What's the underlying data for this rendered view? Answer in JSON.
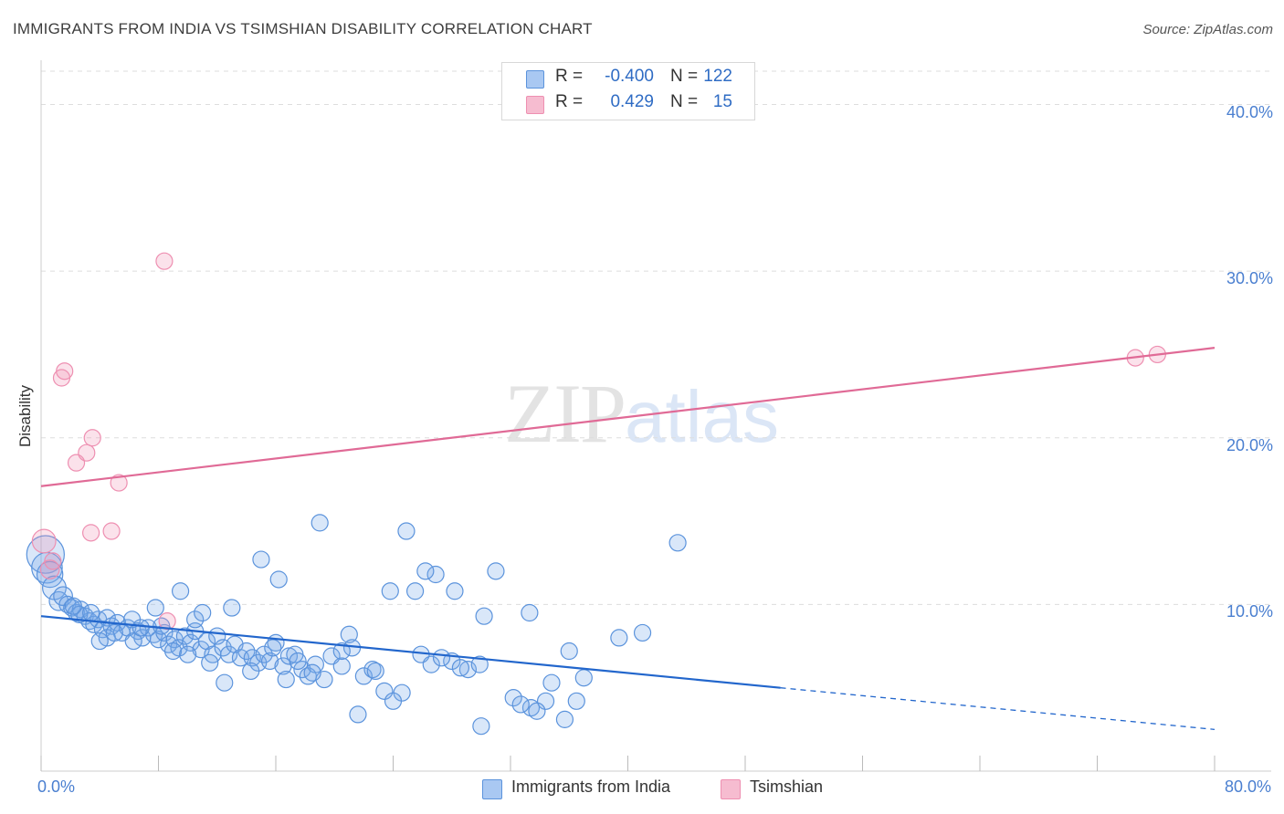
{
  "header": {
    "title": "IMMIGRANTS FROM INDIA VS TSIMSHIAN DISABILITY CORRELATION CHART",
    "source": "Source: ZipAtlas.com"
  },
  "watermark": {
    "zip": "ZIP",
    "atlas": "atlas"
  },
  "stats": {
    "india": {
      "r_label": "R =",
      "r_value": "-0.400",
      "n_label": "N =",
      "n_value": "122",
      "color": "#a9c8f2"
    },
    "tsimshian": {
      "r_label": "R =",
      "r_value": "0.429",
      "n_label": "N =",
      "n_value": "15",
      "color": "#f6bcd0"
    }
  },
  "legend": {
    "india": "Immigrants from India",
    "tsimshian": "Tsimshian"
  },
  "colors": {
    "india_fill": "rgba(120,168,232,0.28)",
    "india_stroke": "#5b93dc",
    "india_line": "#2266cc",
    "tsimshian_fill": "rgba(242,150,182,0.28)",
    "tsimshian_stroke": "#ee8fb1",
    "tsimshian_line": "#e06a96",
    "grid": "#dddddd",
    "axis_text": "#4a7fd0"
  },
  "chart_data": {
    "type": "scatter",
    "title": "IMMIGRANTS FROM INDIA VS TSIMSHIAN DISABILITY CORRELATION CHART",
    "ylabel": "Disability",
    "xlabel": "",
    "xlim": [
      0,
      80
    ],
    "ylim": [
      0,
      42
    ],
    "x_tick_labels": [
      {
        "value": 0,
        "label": "0.0%"
      },
      {
        "value": 80,
        "label": "80.0%"
      }
    ],
    "y_tick_labels": [
      {
        "value": 10,
        "label": "10.0%"
      },
      {
        "value": 20,
        "label": "20.0%"
      },
      {
        "value": 30,
        "label": "30.0%"
      },
      {
        "value": 40,
        "label": "40.0%"
      }
    ],
    "grid": true,
    "legend_position": "bottom-center",
    "series": [
      {
        "name": "Immigrants from India",
        "r": -0.4,
        "n": 122,
        "trendline": {
          "x_start": 0,
          "y_start": 9.3,
          "x_end": 50.4,
          "y_end": 5.0,
          "dashed_to_x": 80,
          "dashed_to_y": 2.5
        },
        "points": [
          [
            0.3,
            13.0,
            1.6
          ],
          [
            0.4,
            12.2,
            1.3
          ],
          [
            0.6,
            11.8,
            1.1
          ],
          [
            0.9,
            11.0,
            1.0
          ],
          [
            1.2,
            10.2,
            0.8
          ],
          [
            1.5,
            10.5,
            0.8
          ],
          [
            1.8,
            10.0,
            0.7
          ],
          [
            2.1,
            9.8,
            0.7
          ],
          [
            2.4,
            9.5,
            0.7
          ],
          [
            2.7,
            9.7,
            0.7
          ],
          [
            3.0,
            9.3,
            0.7
          ],
          [
            3.3,
            9.0,
            0.7
          ],
          [
            3.6,
            8.8,
            0.7
          ],
          [
            3.9,
            9.1,
            0.7
          ],
          [
            4.2,
            8.5,
            0.7
          ],
          [
            4.5,
            9.2,
            0.7
          ],
          [
            4.8,
            8.7,
            0.7
          ],
          [
            5.2,
            8.9,
            0.7
          ],
          [
            5.5,
            8.3,
            0.7
          ],
          [
            5.9,
            8.6,
            0.7
          ],
          [
            6.2,
            9.1,
            0.7
          ],
          [
            6.6,
            8.4,
            0.7
          ],
          [
            6.9,
            8.0,
            0.7
          ],
          [
            7.3,
            8.6,
            0.7
          ],
          [
            7.7,
            8.2,
            0.7
          ],
          [
            8.0,
            7.9,
            0.7
          ],
          [
            8.4,
            8.3,
            0.7
          ],
          [
            8.7,
            7.6,
            0.7
          ],
          [
            9.1,
            7.9,
            0.7
          ],
          [
            9.4,
            7.4,
            0.7
          ],
          [
            9.8,
            8.1,
            0.7
          ],
          [
            10.2,
            7.7,
            0.7
          ],
          [
            10.5,
            8.4,
            0.7
          ],
          [
            10.9,
            7.3,
            0.7
          ],
          [
            11.3,
            7.8,
            0.7
          ],
          [
            11.7,
            7.0,
            0.7
          ],
          [
            12.0,
            8.1,
            0.7
          ],
          [
            12.4,
            7.4,
            0.7
          ],
          [
            12.8,
            7.0,
            0.7
          ],
          [
            13.2,
            7.6,
            0.7
          ],
          [
            13.6,
            6.8,
            0.7
          ],
          [
            14.0,
            7.2,
            0.7
          ],
          [
            14.4,
            6.8,
            0.7
          ],
          [
            14.8,
            6.5,
            0.7
          ],
          [
            15.2,
            7.0,
            0.7
          ],
          [
            15.6,
            6.6,
            0.7
          ],
          [
            16.0,
            7.7,
            0.7
          ],
          [
            16.5,
            6.3,
            0.7
          ],
          [
            16.9,
            6.9,
            0.7
          ],
          [
            17.3,
            7.0,
            0.7
          ],
          [
            17.8,
            6.1,
            0.7
          ],
          [
            18.2,
            5.7,
            0.7
          ],
          [
            18.7,
            6.4,
            0.7
          ],
          [
            19.3,
            5.5,
            0.7
          ],
          [
            19.8,
            6.9,
            0.7
          ],
          [
            20.5,
            6.3,
            0.7
          ],
          [
            21.2,
            7.4,
            0.7
          ],
          [
            22.0,
            5.7,
            0.7
          ],
          [
            22.6,
            6.1,
            0.7
          ],
          [
            23.4,
            4.8,
            0.7
          ],
          [
            24.6,
            4.7,
            0.7
          ],
          [
            25.9,
            7.0,
            0.7
          ],
          [
            26.6,
            6.4,
            0.7
          ],
          [
            28.0,
            6.6,
            0.7
          ],
          [
            29.1,
            6.1,
            0.7
          ],
          [
            30.2,
            9.3,
            0.7
          ],
          [
            32.2,
            4.4,
            0.7
          ],
          [
            33.4,
            3.8,
            0.7
          ],
          [
            34.8,
            5.3,
            0.7
          ],
          [
            37.0,
            5.6,
            0.7
          ],
          [
            39.4,
            8.0,
            0.7
          ],
          [
            19.0,
            14.9,
            0.7
          ],
          [
            24.9,
            14.4,
            0.7
          ],
          [
            26.9,
            11.8,
            0.7
          ],
          [
            16.2,
            11.5,
            0.7
          ],
          [
            15.0,
            12.7,
            0.7
          ],
          [
            33.3,
            9.5,
            0.7
          ],
          [
            31.0,
            12.0,
            0.7
          ],
          [
            26.2,
            12.0,
            0.7
          ],
          [
            20.5,
            7.2,
            0.7
          ],
          [
            21.6,
            3.4,
            0.7
          ],
          [
            23.8,
            10.8,
            0.7
          ],
          [
            28.2,
            10.8,
            0.7
          ],
          [
            29.9,
            6.4,
            0.7
          ],
          [
            36.0,
            7.2,
            0.7
          ],
          [
            34.4,
            4.2,
            0.7
          ],
          [
            43.4,
            13.7,
            0.7
          ],
          [
            10.5,
            9.1,
            0.7
          ],
          [
            11.0,
            9.5,
            0.7
          ],
          [
            9.5,
            10.8,
            0.7
          ],
          [
            13.0,
            9.8,
            0.7
          ],
          [
            7.8,
            9.8,
            0.7
          ],
          [
            8.2,
            8.7,
            0.7
          ],
          [
            6.3,
            7.8,
            0.7
          ],
          [
            4.5,
            8.0,
            0.7
          ],
          [
            4.0,
            7.8,
            0.7
          ],
          [
            2.6,
            9.4,
            0.7
          ],
          [
            2.2,
            9.9,
            0.7
          ],
          [
            3.4,
            9.5,
            0.7
          ],
          [
            5.0,
            8.3,
            0.7
          ],
          [
            6.8,
            8.6,
            0.7
          ],
          [
            9.0,
            7.2,
            0.7
          ],
          [
            10.0,
            7.0,
            0.7
          ],
          [
            11.5,
            6.5,
            0.7
          ],
          [
            12.5,
            5.3,
            0.7
          ],
          [
            14.3,
            6.0,
            0.7
          ],
          [
            15.8,
            7.4,
            0.7
          ],
          [
            16.7,
            5.5,
            0.7
          ],
          [
            17.5,
            6.6,
            0.7
          ],
          [
            18.5,
            5.9,
            0.7
          ],
          [
            21.0,
            8.2,
            0.7
          ],
          [
            22.8,
            6.0,
            0.7
          ],
          [
            24.0,
            4.2,
            0.7
          ],
          [
            25.5,
            10.8,
            0.7
          ],
          [
            27.3,
            6.8,
            0.7
          ],
          [
            28.6,
            6.2,
            0.7
          ],
          [
            32.7,
            4.0,
            0.7
          ],
          [
            33.8,
            3.6,
            0.7
          ],
          [
            35.7,
            3.1,
            0.7
          ],
          [
            36.5,
            4.2,
            0.7
          ],
          [
            30.0,
            2.7,
            0.7
          ],
          [
            41.0,
            8.3,
            0.7
          ]
        ]
      },
      {
        "name": "Tsimshian",
        "r": 0.429,
        "n": 15,
        "trendline": {
          "x_start": 0,
          "y_start": 17.1,
          "x_end": 80,
          "y_end": 25.4
        },
        "points": [
          [
            0.2,
            13.8,
            1.0
          ],
          [
            0.6,
            12.1,
            0.8
          ],
          [
            0.8,
            12.6,
            0.7
          ],
          [
            1.4,
            23.6,
            0.7
          ],
          [
            1.6,
            24.0,
            0.7
          ],
          [
            2.4,
            18.5,
            0.7
          ],
          [
            3.1,
            19.1,
            0.7
          ],
          [
            3.5,
            20.0,
            0.7
          ],
          [
            3.4,
            14.3,
            0.7
          ],
          [
            4.8,
            14.4,
            0.7
          ],
          [
            5.3,
            17.3,
            0.7
          ],
          [
            8.4,
            30.6,
            0.7
          ],
          [
            8.6,
            9.0,
            0.7
          ],
          [
            74.6,
            24.8,
            0.7
          ],
          [
            76.1,
            25.0,
            0.7
          ]
        ]
      }
    ]
  }
}
